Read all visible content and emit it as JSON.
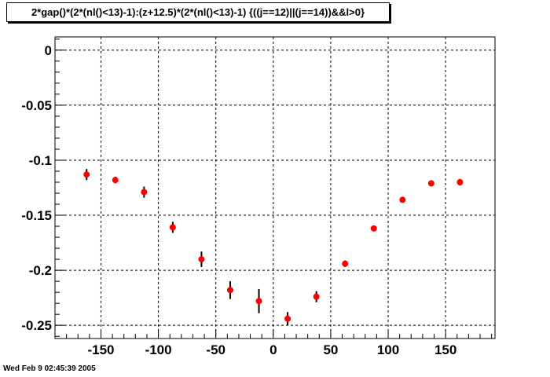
{
  "title": "2*gap()*(2*(nl()<13)-1):(z+12.5)*(2*(nl()<13)-1) {((j==12)||(j==14))&&l>0}",
  "timestamp": "Wed Feb  9 02:45:39 2005",
  "colors": {
    "marker": "#ff0000",
    "error_bar": "#000000",
    "grid": "#000000",
    "background": "#ffffff"
  },
  "chart_data": {
    "type": "scatter",
    "title": "2*gap()*(2*(nl()<13)-1):(z+12.5)*(2*(nl()<13)-1) {((j==12)||(j==14))&&l>0}",
    "xlabel": "",
    "ylabel": "",
    "xlim": [
      -190,
      193
    ],
    "ylim": [
      -0.262,
      0.012
    ],
    "grid": true,
    "x_ticks": [
      -150,
      -100,
      -50,
      0,
      50,
      100,
      150
    ],
    "x_tick_labels": [
      "-150",
      "-100",
      "-50",
      "0",
      "50",
      "100",
      "150"
    ],
    "y_ticks": [
      0,
      -0.05,
      -0.1,
      -0.15,
      -0.2,
      -0.25
    ],
    "y_tick_labels": [
      "0",
      "-0.05",
      "-0.1",
      "-0.15",
      "-0.2",
      "-0.25"
    ],
    "points": [
      {
        "x": -162.5,
        "y": -0.113,
        "err": 0.005
      },
      {
        "x": -137.5,
        "y": -0.118,
        "err": 0.003
      },
      {
        "x": -112.5,
        "y": -0.129,
        "err": 0.005
      },
      {
        "x": -87.5,
        "y": -0.161,
        "err": 0.005
      },
      {
        "x": -62.5,
        "y": -0.19,
        "err": 0.007
      },
      {
        "x": -37.5,
        "y": -0.218,
        "err": 0.008
      },
      {
        "x": -12.5,
        "y": -0.228,
        "err": 0.011
      },
      {
        "x": 12.5,
        "y": -0.244,
        "err": 0.006
      },
      {
        "x": 37.5,
        "y": -0.224,
        "err": 0.005
      },
      {
        "x": 62.5,
        "y": -0.194,
        "err": 0.003
      },
      {
        "x": 87.5,
        "y": -0.162,
        "err": 0.002
      },
      {
        "x": 112.5,
        "y": -0.136,
        "err": 0.002
      },
      {
        "x": 137.5,
        "y": -0.121,
        "err": 0.002
      },
      {
        "x": 162.5,
        "y": -0.12,
        "err": 0.003
      }
    ]
  }
}
